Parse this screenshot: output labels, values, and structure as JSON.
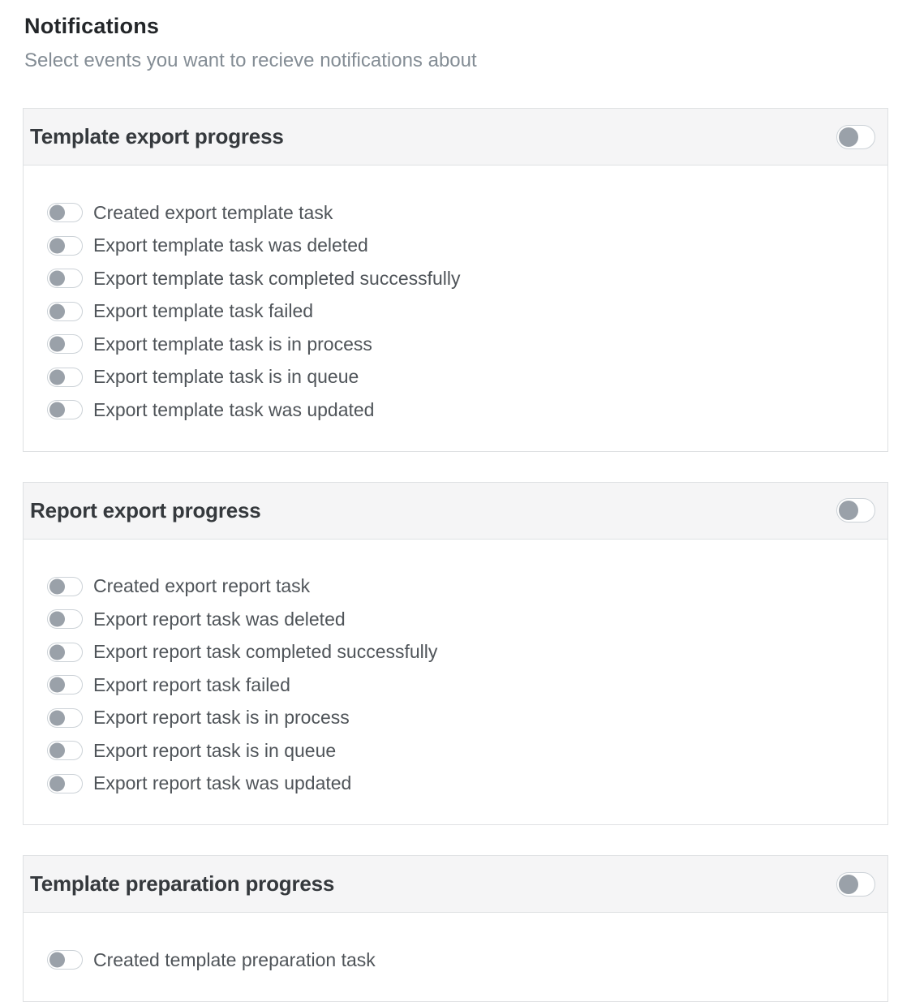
{
  "page": {
    "title": "Notifications",
    "subtitle": "Select events you want to recieve notifications about"
  },
  "sections": [
    {
      "title": "Template export progress",
      "enabled": false,
      "items": [
        {
          "label": "Created export template task",
          "enabled": false
        },
        {
          "label": "Export template task was deleted",
          "enabled": false
        },
        {
          "label": "Export template task completed successfully",
          "enabled": false
        },
        {
          "label": "Export template task failed",
          "enabled": false
        },
        {
          "label": "Export template task is in process",
          "enabled": false
        },
        {
          "label": "Export template task is in queue",
          "enabled": false
        },
        {
          "label": "Export template task was updated",
          "enabled": false
        }
      ]
    },
    {
      "title": "Report export progress",
      "enabled": false,
      "items": [
        {
          "label": "Created export report task",
          "enabled": false
        },
        {
          "label": "Export report task was deleted",
          "enabled": false
        },
        {
          "label": "Export report task completed successfully",
          "enabled": false
        },
        {
          "label": "Export report task failed",
          "enabled": false
        },
        {
          "label": "Export report task is in process",
          "enabled": false
        },
        {
          "label": "Export report task is in queue",
          "enabled": false
        },
        {
          "label": "Export report task was updated",
          "enabled": false
        }
      ]
    },
    {
      "title": "Template preparation progress",
      "enabled": false,
      "items": [
        {
          "label": "Created template preparation task",
          "enabled": false
        }
      ]
    }
  ],
  "colors": {
    "header_background": "#f5f5f6",
    "card_border": "#dfe1e3",
    "toggle_knob_off": "#9aa1a9",
    "toggle_border": "#ccd2d7",
    "title_text": "#232629",
    "subtitle_text": "#848d95",
    "section_title_text": "#35393d",
    "item_text": "#4f5459"
  }
}
